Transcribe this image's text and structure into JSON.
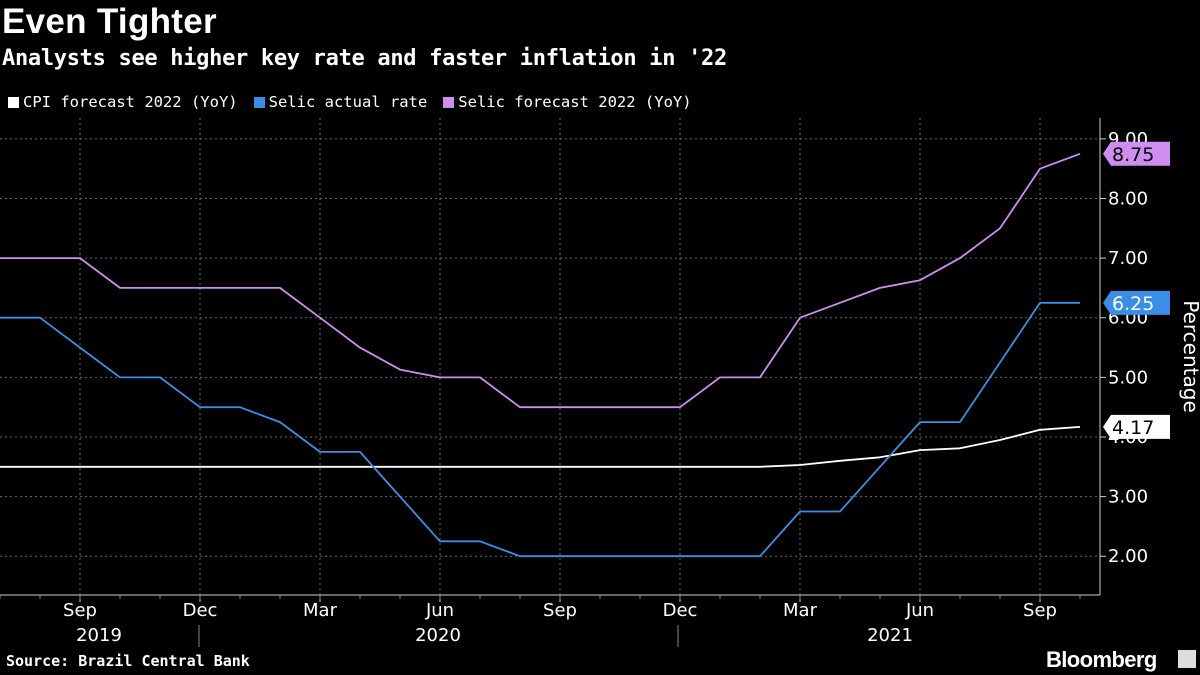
{
  "title": "Even Tighter",
  "subtitle": "Analysts see higher key rate and faster inflation in '22",
  "source": "Source: Brazil Central Bank",
  "brand": "Bloomberg",
  "brand_icon": "bloomberg-terminal-icon",
  "colors": {
    "background": "#000000",
    "cpi": "#ffffff",
    "selic_actual": "#3a8ee8",
    "selic_forecast": "#cf8eef"
  },
  "chart_data": {
    "type": "line",
    "title": "Even Tighter",
    "subtitle": "Analysts see higher key rate and faster inflation in '22",
    "ylabel": "Percentage",
    "ylim": [
      1.35,
      9.35
    ],
    "y_ticks": [
      "2.00",
      "3.00",
      "4.00",
      "5.00",
      "6.00",
      "7.00",
      "8.00",
      "9.00"
    ],
    "y_axis_position": "right",
    "grid": true,
    "legend_position": "top-left",
    "x_ticks": [
      "Sep",
      "Dec",
      "Mar",
      "Jun",
      "Sep",
      "Dec",
      "Mar",
      "Jun",
      "Sep"
    ],
    "x_years": [
      "2019",
      "2020",
      "2021"
    ],
    "x": [
      "2019-07",
      "2019-08",
      "2019-09",
      "2019-10",
      "2019-11",
      "2019-12",
      "2020-01",
      "2020-02",
      "2020-03",
      "2020-04",
      "2020-05",
      "2020-06",
      "2020-07",
      "2020-08",
      "2020-09",
      "2020-10",
      "2020-11",
      "2020-12",
      "2021-01",
      "2021-02",
      "2021-03",
      "2021-04",
      "2021-05",
      "2021-06",
      "2021-07",
      "2021-08",
      "2021-09",
      "2021-10"
    ],
    "series": [
      {
        "name": "CPI forecast 2022 (YoY)",
        "color": "#ffffff",
        "last_label": "4.17",
        "values": [
          3.5,
          3.5,
          3.5,
          3.5,
          3.5,
          3.5,
          3.5,
          3.5,
          3.5,
          3.5,
          3.5,
          3.5,
          3.5,
          3.5,
          3.5,
          3.5,
          3.5,
          3.5,
          3.5,
          3.5,
          3.53,
          3.6,
          3.66,
          3.78,
          3.81,
          3.95,
          4.12,
          4.17
        ]
      },
      {
        "name": "Selic actual rate",
        "color": "#3a8ee8",
        "last_label": "6.25",
        "values": [
          6.0,
          6.0,
          5.5,
          5.0,
          5.0,
          4.5,
          4.5,
          4.25,
          3.75,
          3.75,
          3.0,
          2.25,
          2.25,
          2.0,
          2.0,
          2.0,
          2.0,
          2.0,
          2.0,
          2.0,
          2.75,
          2.75,
          3.5,
          4.25,
          4.25,
          5.25,
          6.25,
          6.25
        ]
      },
      {
        "name": "Selic forecast 2022 (YoY)",
        "color": "#cf8eef",
        "last_label": "8.75",
        "values": [
          7.0,
          7.0,
          7.0,
          6.5,
          6.5,
          6.5,
          6.5,
          6.5,
          6.0,
          5.5,
          5.13,
          5.0,
          5.0,
          4.5,
          4.5,
          4.5,
          4.5,
          4.5,
          5.0,
          5.0,
          6.0,
          6.25,
          6.5,
          6.63,
          7.0,
          7.5,
          8.5,
          8.75
        ]
      }
    ]
  }
}
